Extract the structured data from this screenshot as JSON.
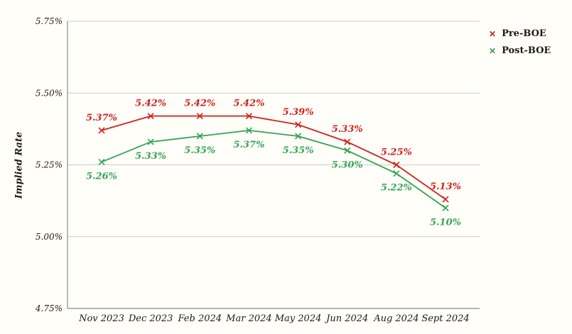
{
  "chart_data": {
    "type": "line",
    "title": "",
    "xlabel": "",
    "ylabel": "Implied Rate",
    "ylim": [
      4.75,
      5.75
    ],
    "ytick_values": [
      5.75,
      5.5,
      5.25,
      5.0,
      4.75
    ],
    "ytick_labels": [
      "5.75%",
      "5.50%",
      "5.25%",
      "5.00%",
      "4.75%"
    ],
    "categories": [
      "Nov 2023",
      "Dec 2023",
      "Feb 2024",
      "Mar 2024",
      "May 2024",
      "Jun 2024",
      "Aug 2024",
      "Sept 2024"
    ],
    "series": [
      {
        "name": "Pre-BOE",
        "color": "#d0211c",
        "marker": "x",
        "label_position": "above",
        "values": [
          5.37,
          5.42,
          5.42,
          5.42,
          5.39,
          5.33,
          5.25,
          5.13
        ],
        "labels": [
          "5.37%",
          "5.42%",
          "5.42%",
          "5.42%",
          "5.39%",
          "5.33%",
          "5.25%",
          "5.13%"
        ]
      },
      {
        "name": "Post-BOE",
        "color": "#34a353",
        "marker": "x",
        "label_position": "below",
        "values": [
          5.26,
          5.33,
          5.35,
          5.37,
          5.35,
          5.3,
          5.22,
          5.1
        ],
        "labels": [
          "5.26%",
          "5.33%",
          "5.35%",
          "5.37%",
          "5.35%",
          "5.30%",
          "5.22%",
          "5.10%"
        ]
      }
    ],
    "grid": true,
    "gridline_color": "#cccccc",
    "axis_color": "#8c8c8c",
    "legend_position": "top-right"
  }
}
